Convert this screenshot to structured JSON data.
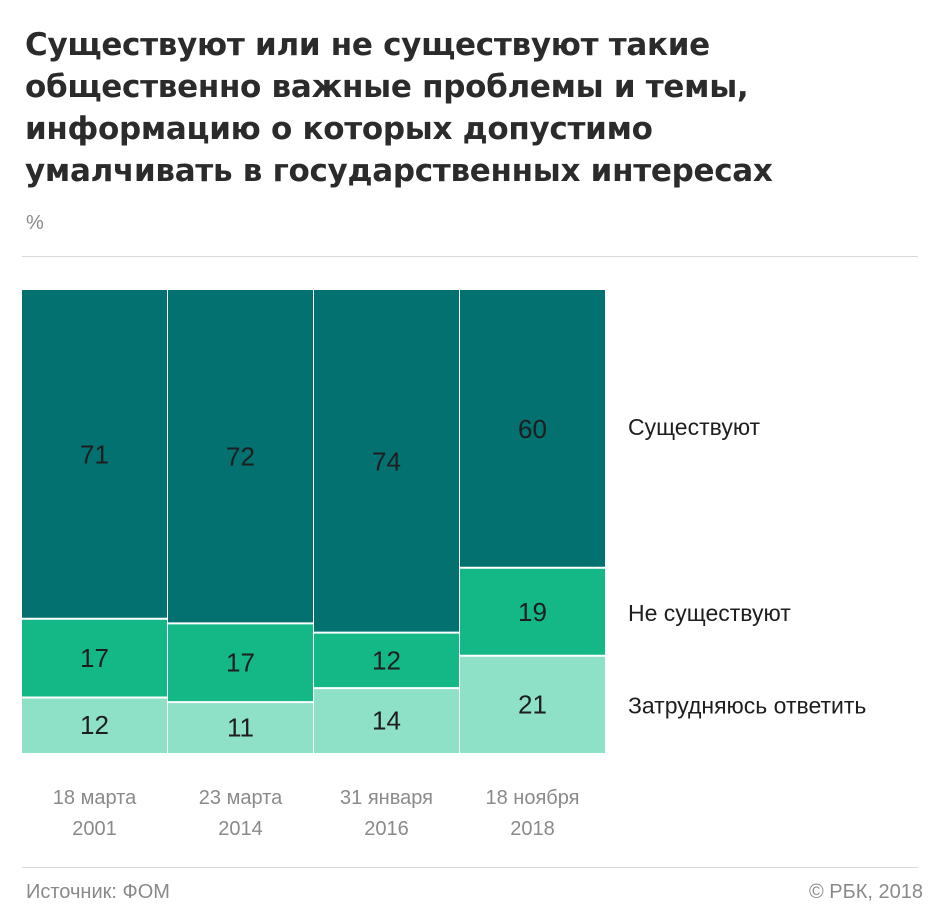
{
  "title_lines": [
    "Существуют или не существуют такие",
    "общественно важные проблемы и темы,",
    "информацию о которых допустимо",
    "умалчивать в государственных интересах"
  ],
  "unit": "%",
  "source": "Источник: ФОМ",
  "copyright": "© РБК, 2018",
  "colors": {
    "exist": "#037170",
    "not_exist": "#13b886",
    "hard_to_say": "#8ee0c6"
  },
  "chart_data": {
    "type": "bar",
    "stacked": true,
    "categories": [
      [
        "18 марта",
        "2001"
      ],
      [
        "23 марта",
        "2014"
      ],
      [
        "31 января",
        "2016"
      ],
      [
        "18 ноября",
        "2018"
      ]
    ],
    "series": [
      {
        "name": "Существуют",
        "values": [
          71,
          72,
          74,
          60
        ]
      },
      {
        "name": "Не существуют",
        "values": [
          17,
          17,
          12,
          19
        ]
      },
      {
        "name": "Затрудняюсь ответить",
        "values": [
          12,
          11,
          14,
          21
        ]
      }
    ],
    "ylim": [
      0,
      100
    ],
    "data_labels": true,
    "legend": "right",
    "grid": false
  }
}
